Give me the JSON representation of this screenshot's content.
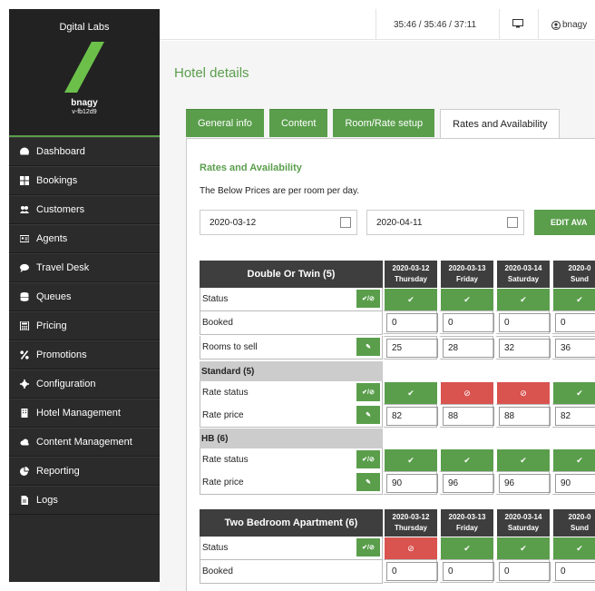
{
  "sidebar": {
    "app_name": "Dgital Labs",
    "username": "bnagy",
    "user_id": "v-fb12d9",
    "items": [
      {
        "label": "Dashboard",
        "icon": "dashboard-icon"
      },
      {
        "label": "Bookings",
        "icon": "grid-icon"
      },
      {
        "label": "Customers",
        "icon": "users-icon"
      },
      {
        "label": "Agents",
        "icon": "id-card-icon"
      },
      {
        "label": "Travel Desk",
        "icon": "chat-icon"
      },
      {
        "label": "Queues",
        "icon": "database-icon"
      },
      {
        "label": "Pricing",
        "icon": "calculator-icon"
      },
      {
        "label": "Promotions",
        "icon": "percent-icon"
      },
      {
        "label": "Configuration",
        "icon": "gear-icon"
      },
      {
        "label": "Hotel Management",
        "icon": "building-icon"
      },
      {
        "label": "Content Management",
        "icon": "cloud-icon"
      },
      {
        "label": "Reporting",
        "icon": "pie-chart-icon"
      },
      {
        "label": "Logs",
        "icon": "file-icon"
      }
    ]
  },
  "topbar": {
    "time": "35:46 / 35:46 / 37:11",
    "user": "bnagy"
  },
  "main": {
    "title": "Hotel details",
    "tabs": [
      "General info",
      "Content",
      "Room/Rate setup",
      "Rates and Availability"
    ],
    "active_tab": "Rates and Availability",
    "section_title": "Rates and Availability",
    "note": "The Below Prices are per room per day.",
    "date_from": "2020-03-12",
    "date_to": "2020-04-11",
    "edit_button": "EDIT AVA"
  },
  "dates": [
    {
      "date": "2020-03-12",
      "day": "Thursday"
    },
    {
      "date": "2020-03-13",
      "day": "Friday"
    },
    {
      "date": "2020-03-14",
      "day": "Saturday"
    },
    {
      "date": "2020-0",
      "day": "Sund"
    }
  ],
  "rooms": [
    {
      "name": "Double Or Twin (5)",
      "status_label": "Status",
      "status": [
        "on",
        "on",
        "on",
        "on"
      ],
      "booked_label": "Booked",
      "booked": [
        "0",
        "0",
        "0",
        "0"
      ],
      "rooms_label": "Rooms to sell",
      "rooms": [
        "25",
        "28",
        "32",
        "36"
      ],
      "rates": [
        {
          "name": "Standard (5)",
          "status_label": "Rate status",
          "status": [
            "on",
            "off",
            "off",
            "on"
          ],
          "price_label": "Rate price",
          "prices": [
            "82",
            "88",
            "88",
            "82"
          ]
        },
        {
          "name": "HB (6)",
          "status_label": "Rate status",
          "status": [
            "on",
            "on",
            "on",
            "on"
          ],
          "price_label": "Rate price",
          "prices": [
            "90",
            "96",
            "96",
            "90"
          ]
        }
      ]
    },
    {
      "name": "Two Bedroom Apartment (6)",
      "status_label": "Status",
      "status": [
        "off",
        "on",
        "on",
        "on"
      ],
      "booked_label": "Booked",
      "booked": [
        "0",
        "0",
        "0",
        "0"
      ]
    }
  ],
  "glyphs": {
    "on": "✔",
    "off": "⊘",
    "toggle": "✔/⊘",
    "edit": "✎"
  },
  "colors": {
    "accent": "#5a9e4c",
    "danger": "#d9534f",
    "dark": "#3e3e3e"
  }
}
